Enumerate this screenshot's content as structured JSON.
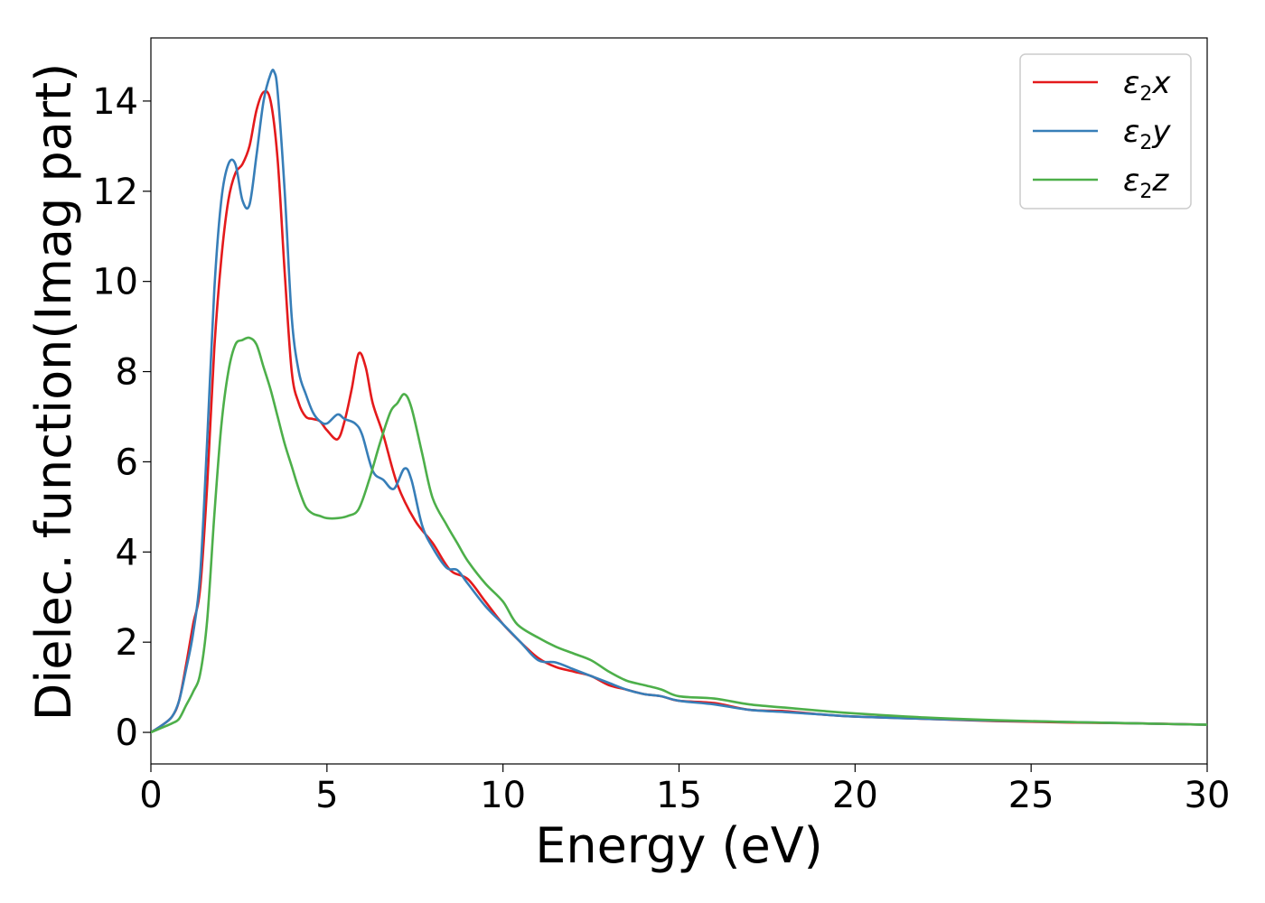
{
  "chart_data": {
    "type": "line",
    "xlabel": "Energy (eV)",
    "ylabel": "Dielec. function(Imag part)",
    "xlim": [
      0,
      30
    ],
    "ylim": [
      -0.7,
      15.4
    ],
    "xticks": [
      0,
      5,
      10,
      15,
      20,
      25,
      30
    ],
    "yticks": [
      0,
      2,
      4,
      6,
      8,
      10,
      12,
      14
    ],
    "grid": false,
    "legend_position": "top-right",
    "series": [
      {
        "name": "ε₂x",
        "name_base": "ε",
        "name_sub": "2",
        "name_suffix": "x",
        "color": "#e41a1c",
        "x": [
          0,
          0.3,
          0.6,
          0.8,
          1.0,
          1.2,
          1.4,
          1.6,
          1.8,
          2.0,
          2.2,
          2.4,
          2.6,
          2.8,
          3.0,
          3.2,
          3.4,
          3.6,
          3.8,
          4.0,
          4.2,
          4.4,
          4.6,
          4.8,
          5.0,
          5.3,
          5.5,
          5.7,
          5.9,
          6.1,
          6.3,
          6.6,
          7.0,
          7.5,
          8.0,
          8.5,
          9.0,
          9.5,
          10.0,
          10.5,
          11.0,
          11.5,
          12.0,
          12.5,
          13.0,
          13.5,
          14.0,
          14.5,
          15.0,
          16.0,
          17.0,
          18.0,
          19.0,
          20.0,
          22.0,
          24.0,
          26.0,
          28.0,
          30.0
        ],
        "y": [
          0,
          0.15,
          0.35,
          0.7,
          1.5,
          2.4,
          3.2,
          5.5,
          8.5,
          10.5,
          11.8,
          12.4,
          12.6,
          13.0,
          13.8,
          14.2,
          14.0,
          12.7,
          10.2,
          8.0,
          7.3,
          7.0,
          6.95,
          6.9,
          6.7,
          6.5,
          6.9,
          7.6,
          8.4,
          8.1,
          7.3,
          6.6,
          5.5,
          4.7,
          4.2,
          3.6,
          3.4,
          2.9,
          2.4,
          2.0,
          1.65,
          1.45,
          1.35,
          1.25,
          1.05,
          0.95,
          0.85,
          0.8,
          0.7,
          0.65,
          0.5,
          0.47,
          0.4,
          0.35,
          0.3,
          0.25,
          0.22,
          0.2,
          0.17
        ]
      },
      {
        "name": "ε₂y",
        "name_base": "ε",
        "name_sub": "2",
        "name_suffix": "y",
        "color": "#377eb8",
        "x": [
          0,
          0.3,
          0.6,
          0.8,
          1.0,
          1.2,
          1.4,
          1.6,
          1.8,
          2.0,
          2.2,
          2.4,
          2.6,
          2.8,
          3.0,
          3.2,
          3.4,
          3.5,
          3.6,
          3.8,
          4.0,
          4.2,
          4.4,
          4.6,
          4.8,
          5.0,
          5.3,
          5.5,
          5.8,
          6.0,
          6.3,
          6.6,
          6.9,
          7.2,
          7.4,
          7.7,
          8.0,
          8.4,
          8.7,
          9.0,
          9.5,
          10.0,
          10.5,
          11.0,
          11.5,
          12.0,
          12.5,
          13.0,
          13.5,
          14.0,
          14.5,
          15.0,
          16.0,
          17.0,
          18.0,
          19.0,
          20.0,
          22.0,
          24.0,
          26.0,
          28.0,
          30.0
        ],
        "y": [
          0,
          0.15,
          0.35,
          0.7,
          1.4,
          2.2,
          3.5,
          6.5,
          9.8,
          11.8,
          12.6,
          12.6,
          11.8,
          11.7,
          12.8,
          14.0,
          14.6,
          14.65,
          14.2,
          12.0,
          9.2,
          8.0,
          7.5,
          7.1,
          6.9,
          6.85,
          7.05,
          6.95,
          6.85,
          6.6,
          5.8,
          5.6,
          5.4,
          5.85,
          5.6,
          4.6,
          4.1,
          3.65,
          3.6,
          3.3,
          2.8,
          2.4,
          2.0,
          1.6,
          1.55,
          1.4,
          1.25,
          1.1,
          0.95,
          0.85,
          0.8,
          0.7,
          0.62,
          0.5,
          0.45,
          0.4,
          0.35,
          0.3,
          0.26,
          0.23,
          0.2,
          0.17
        ]
      },
      {
        "name": "ε₂z",
        "name_base": "ε",
        "name_sub": "2",
        "name_suffix": "z",
        "color": "#4daf4a",
        "x": [
          0,
          0.3,
          0.6,
          0.8,
          1.0,
          1.2,
          1.4,
          1.6,
          1.8,
          2.0,
          2.2,
          2.4,
          2.6,
          2.8,
          3.0,
          3.2,
          3.4,
          3.6,
          3.8,
          4.0,
          4.2,
          4.4,
          4.6,
          4.8,
          5.0,
          5.3,
          5.6,
          5.9,
          6.2,
          6.5,
          6.8,
          7.0,
          7.2,
          7.4,
          7.7,
          8.0,
          8.4,
          8.7,
          9.0,
          9.5,
          10.0,
          10.4,
          11.0,
          11.5,
          12.0,
          12.5,
          13.0,
          13.5,
          14.0,
          14.5,
          15.0,
          16.0,
          17.0,
          18.0,
          19.0,
          20.0,
          22.0,
          24.0,
          26.0,
          28.0,
          30.0
        ],
        "y": [
          0,
          0.1,
          0.2,
          0.3,
          0.6,
          0.9,
          1.3,
          2.5,
          4.8,
          6.8,
          8.0,
          8.6,
          8.7,
          8.75,
          8.6,
          8.1,
          7.6,
          7.0,
          6.4,
          5.9,
          5.4,
          5.0,
          4.85,
          4.8,
          4.75,
          4.75,
          4.8,
          4.95,
          5.6,
          6.4,
          7.1,
          7.3,
          7.5,
          7.2,
          6.2,
          5.2,
          4.6,
          4.2,
          3.8,
          3.3,
          2.9,
          2.4,
          2.1,
          1.9,
          1.75,
          1.6,
          1.35,
          1.15,
          1.05,
          0.95,
          0.8,
          0.75,
          0.62,
          0.55,
          0.48,
          0.42,
          0.33,
          0.27,
          0.23,
          0.2,
          0.17
        ]
      }
    ]
  }
}
